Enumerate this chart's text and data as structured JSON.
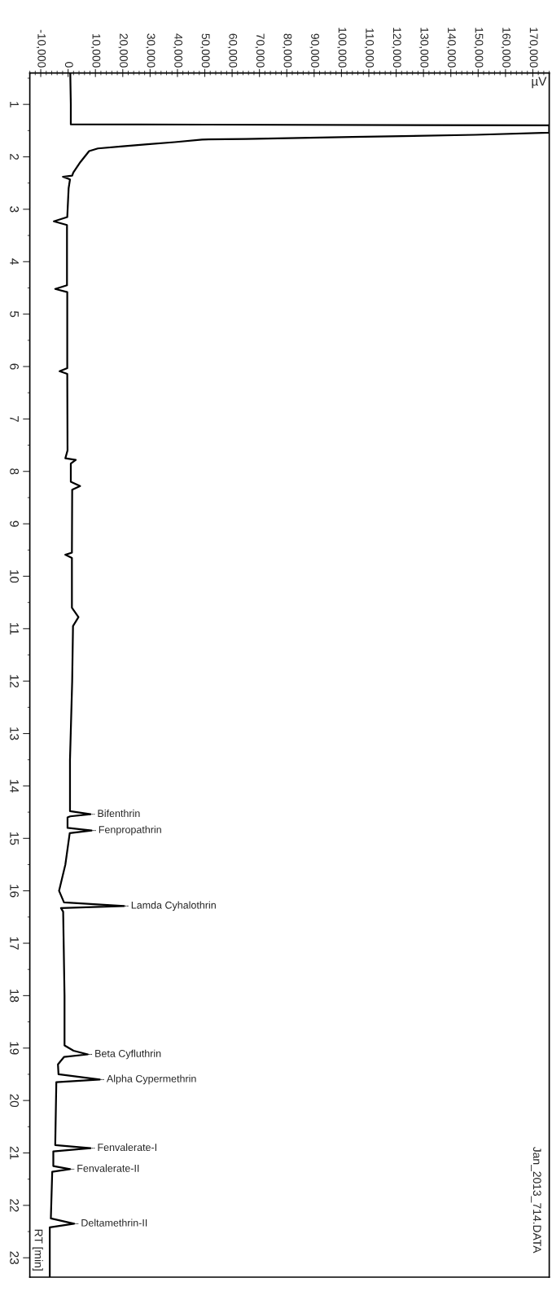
{
  "chart_data": {
    "type": "line",
    "orientation": "horizontal",
    "xlabel": "µV",
    "ylabel": "RT [min]",
    "xlim": [
      -14000,
      176000
    ],
    "xticks": [
      {
        "value": -10000,
        "label": "-10,000"
      },
      0,
      {
        "value": 10000,
        "label": "10,000"
      },
      {
        "value": 20000,
        "label": "20,000"
      },
      {
        "value": 30000,
        "label": "30,000"
      },
      {
        "value": 40000,
        "label": "40,000"
      },
      {
        "value": 50000,
        "label": "50,000"
      },
      {
        "value": 60000,
        "label": "60,000"
      },
      {
        "value": 70000,
        "label": "70,000"
      },
      {
        "value": 80000,
        "label": "80,000"
      },
      {
        "value": 90000,
        "label": "90,000"
      },
      {
        "value": 100000,
        "label": "100,000"
      },
      {
        "value": 110000,
        "label": "110,000"
      },
      {
        "value": 120000,
        "label": "120,000"
      },
      {
        "value": 130000,
        "label": "130,000"
      },
      {
        "value": 140000,
        "label": "140,000"
      },
      {
        "value": 150000,
        "label": "150,000"
      },
      {
        "value": 160000,
        "label": "160,000"
      },
      {
        "value": 170000,
        "label": "170,000"
      }
    ],
    "ylim": [
      23.37,
      0.4
    ],
    "yticks": [
      1,
      2,
      3,
      4,
      5,
      6,
      7,
      8,
      9,
      10,
      11,
      12,
      13,
      14,
      15,
      16,
      17,
      18,
      19,
      20,
      21,
      22,
      23
    ],
    "series": [
      {
        "color": "#000000",
        "x": [
          0.4,
          1.0,
          1.38,
          1.4,
          1.54,
          1.58,
          1.62,
          1.66,
          1.67,
          1.72,
          1.76,
          1.8,
          1.84,
          1.89,
          2.1,
          2.3,
          2.36,
          2.38,
          2.43,
          2.6,
          3.15,
          3.23,
          3.3,
          4.45,
          4.52,
          4.58,
          6.03,
          6.09,
          6.14,
          7.6,
          7.75,
          7.78,
          7.85,
          8.2,
          8.28,
          8.35,
          9.55,
          9.59,
          9.65,
          10.6,
          10.78,
          10.95,
          12.0,
          13.5,
          14.48,
          14.54,
          14.58,
          14.6,
          14.8,
          14.85,
          14.9,
          15.5,
          16.0,
          16.22,
          16.29,
          16.33,
          16.4,
          18.0,
          18.95,
          19.05,
          19.12,
          19.17,
          19.31,
          19.5,
          19.6,
          19.65,
          20.85,
          20.91,
          20.97,
          21.25,
          21.31,
          21.36,
          22.25,
          22.35,
          22.42,
          23.37
        ],
        "values": [
          800,
          1000,
          1000,
          176000,
          176000,
          149000,
          104000,
          65000,
          49000,
          39000,
          29000,
          20000,
          10900,
          7700,
          4500,
          1900,
          1500,
          -1900,
          700,
          200,
          -300,
          -5200,
          -400,
          -400,
          -4700,
          -300,
          -300,
          -3100,
          -300,
          -200,
          -1000,
          2800,
          1000,
          1000,
          4400,
          1500,
          1400,
          -1000,
          1400,
          1400,
          3800,
          1800,
          1500,
          700,
          700,
          8200,
          800,
          -200,
          -200,
          8600,
          600,
          -1000,
          -3300,
          -1500,
          20500,
          -2600,
          -1800,
          -1300,
          -1300,
          2000,
          7200,
          -1500,
          -3700,
          -3500,
          11600,
          -4300,
          -4700,
          8200,
          -5400,
          -5400,
          700,
          -5800,
          -6300,
          2200,
          -6700,
          -6700
        ]
      }
    ],
    "annotations": [
      {
        "text": "Bifenthrin",
        "x": 8200,
        "y": 14.54
      },
      {
        "text": "Fenpropathrin",
        "x": 8600,
        "y": 14.85
      },
      {
        "text": "Lamda Cyhalothrin",
        "x": 20500,
        "y": 16.29
      },
      {
        "text": "Beta Cyfluthrin",
        "x": 7200,
        "y": 19.12
      },
      {
        "text": "Alpha Cypermethrin",
        "x": 11600,
        "y": 19.6
      },
      {
        "text": "Fenvalerate-I",
        "x": 8200,
        "y": 20.91
      },
      {
        "text": "Fenvalerate-II",
        "x": 700,
        "y": 21.31
      },
      {
        "text": "Deltamethrin-II",
        "x": 2200,
        "y": 22.35
      },
      "Jan_2013_714.DATA"
    ]
  }
}
